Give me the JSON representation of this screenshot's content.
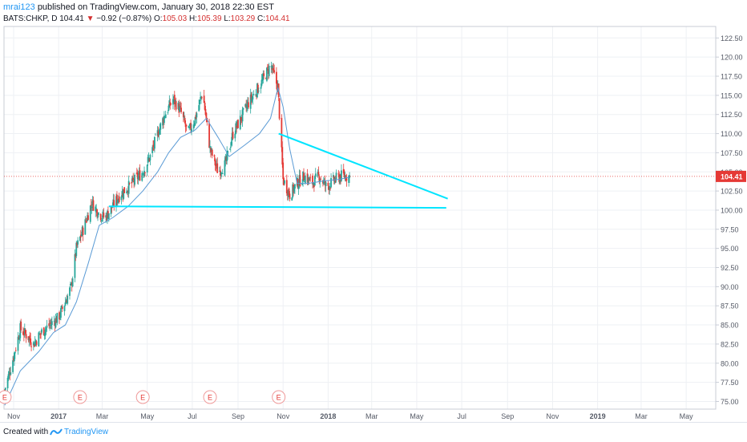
{
  "header": {
    "author": "mrai123",
    "published": "published on TradingView.com, January 30, 2018 22:30 EST",
    "symbol": "BATS:CHKP, D",
    "last": "104.41",
    "change": "−0.92 (−0.87%)",
    "o_label": "O:",
    "o_value": "105.03",
    "h_label": "H:",
    "h_value": "105.39",
    "l_label": "L:",
    "l_value": "103.29",
    "c_label": "C:",
    "c_value": "104.41"
  },
  "footer": {
    "created": "Created with",
    "brand": "TradingView"
  },
  "colors": {
    "up": "#26a69a",
    "down": "#e53935",
    "sma": "#5b9bd5",
    "trend": "#00e5ff",
    "price_line": "#e53935",
    "earnings": "#ef9a9a"
  },
  "chart_data": {
    "type": "candlestick",
    "symbol": "BATS:CHKP",
    "interval": "D",
    "ylim": [
      74.0,
      124.0
    ],
    "y_ticks": [
      75.0,
      77.5,
      80.0,
      82.5,
      85.0,
      87.5,
      90.0,
      92.5,
      95.0,
      97.5,
      100.0,
      102.5,
      105.0,
      107.5,
      110.0,
      112.5,
      115.0,
      117.5,
      120.0,
      122.5
    ],
    "y_tick_labels": [
      "75.00",
      "77.50",
      "80.00",
      "82.50",
      "85.00",
      "87.50",
      "90.00",
      "92.50",
      "95.00",
      "97.50",
      "100.00",
      "102.50",
      "105.00",
      "107.50",
      "110.00",
      "112.50",
      "115.00",
      "117.50",
      "120.00",
      "122.50"
    ],
    "x_range": [
      "2016-10-19",
      "2019-06-10"
    ],
    "x_ticks": [
      {
        "date": "2016-11-01",
        "label": "Nov",
        "bold": false
      },
      {
        "date": "2017-01-01",
        "label": "2017",
        "bold": true
      },
      {
        "date": "2017-03-01",
        "label": "Mar",
        "bold": false
      },
      {
        "date": "2017-05-01",
        "label": "May",
        "bold": false
      },
      {
        "date": "2017-07-01",
        "label": "Jul",
        "bold": false
      },
      {
        "date": "2017-09-01",
        "label": "Sep",
        "bold": false
      },
      {
        "date": "2017-11-01",
        "label": "Nov",
        "bold": false
      },
      {
        "date": "2018-01-01",
        "label": "2018",
        "bold": true
      },
      {
        "date": "2018-03-01",
        "label": "Mar",
        "bold": false
      },
      {
        "date": "2018-05-01",
        "label": "May",
        "bold": false
      },
      {
        "date": "2018-07-01",
        "label": "Jul",
        "bold": false
      },
      {
        "date": "2018-09-01",
        "label": "Sep",
        "bold": false
      },
      {
        "date": "2018-11-01",
        "label": "Nov",
        "bold": false
      },
      {
        "date": "2019-01-01",
        "label": "2019",
        "bold": true
      },
      {
        "date": "2019-03-01",
        "label": "Mar",
        "bold": false
      },
      {
        "date": "2019-05-01",
        "label": "May",
        "bold": false
      }
    ],
    "close_series": [
      [
        "2016-10-20",
        76.5
      ],
      [
        "2016-10-31",
        80.5
      ],
      [
        "2016-11-10",
        84.5
      ],
      [
        "2016-11-20",
        83.5
      ],
      [
        "2016-11-28",
        82.5
      ],
      [
        "2016-12-08",
        84.0
      ],
      [
        "2016-12-20",
        85.0
      ],
      [
        "2017-01-01",
        86.0
      ],
      [
        "2017-01-10",
        88.0
      ],
      [
        "2017-01-18",
        90.0
      ],
      [
        "2017-01-25",
        95.0
      ],
      [
        "2017-02-05",
        98.0
      ],
      [
        "2017-02-15",
        101.0
      ],
      [
        "2017-02-25",
        99.5
      ],
      [
        "2017-03-05",
        99.0
      ],
      [
        "2017-03-15",
        100.5
      ],
      [
        "2017-03-25",
        102.0
      ],
      [
        "2017-04-05",
        103.0
      ],
      [
        "2017-04-15",
        104.0
      ],
      [
        "2017-04-25",
        105.0
      ],
      [
        "2017-05-05",
        107.0
      ],
      [
        "2017-05-15",
        110.0
      ],
      [
        "2017-05-25",
        112.5
      ],
      [
        "2017-06-05",
        114.5
      ],
      [
        "2017-06-15",
        113.0
      ],
      [
        "2017-06-25",
        110.0
      ],
      [
        "2017-07-05",
        112.0
      ],
      [
        "2017-07-15",
        115.5
      ],
      [
        "2017-07-25",
        108.0
      ],
      [
        "2017-08-05",
        105.0
      ],
      [
        "2017-08-15",
        106.0
      ],
      [
        "2017-08-25",
        110.0
      ],
      [
        "2017-09-05",
        112.0
      ],
      [
        "2017-09-15",
        114.0
      ],
      [
        "2017-09-25",
        115.5
      ],
      [
        "2017-10-05",
        117.0
      ],
      [
        "2017-10-15",
        119.0
      ],
      [
        "2017-10-20",
        117.5
      ],
      [
        "2017-10-25",
        116.0
      ],
      [
        "2017-11-01",
        104.0
      ],
      [
        "2017-11-10",
        102.0
      ],
      [
        "2017-11-20",
        103.5
      ],
      [
        "2017-11-30",
        104.5
      ],
      [
        "2017-12-10",
        103.5
      ],
      [
        "2017-12-20",
        104.5
      ],
      [
        "2017-12-30",
        103.0
      ],
      [
        "2018-01-10",
        104.0
      ],
      [
        "2018-01-20",
        104.5
      ],
      [
        "2018-01-30",
        104.41
      ]
    ],
    "sma_series": [
      [
        "2016-10-20",
        74.5
      ],
      [
        "2016-11-10",
        79.0
      ],
      [
        "2016-12-05",
        81.5
      ],
      [
        "2016-12-25",
        84.0
      ],
      [
        "2017-01-10",
        85.0
      ],
      [
        "2017-01-25",
        88.0
      ],
      [
        "2017-02-10",
        93.0
      ],
      [
        "2017-02-25",
        98.0
      ],
      [
        "2017-03-15",
        99.0
      ],
      [
        "2017-04-05",
        100.5
      ],
      [
        "2017-04-25",
        102.5
      ],
      [
        "2017-05-15",
        105.0
      ],
      [
        "2017-05-30",
        107.5
      ],
      [
        "2017-06-15",
        109.5
      ],
      [
        "2017-07-05",
        110.5
      ],
      [
        "2017-07-20",
        112.0
      ],
      [
        "2017-08-05",
        109.5
      ],
      [
        "2017-08-20",
        107.0
      ],
      [
        "2017-09-10",
        108.5
      ],
      [
        "2017-09-30",
        110.0
      ],
      [
        "2017-10-15",
        112.0
      ],
      [
        "2017-10-25",
        116.0
      ],
      [
        "2017-11-01",
        113.5
      ],
      [
        "2017-11-10",
        108.0
      ],
      [
        "2017-11-20",
        103.5
      ],
      [
        "2017-12-05",
        103.5
      ],
      [
        "2017-12-25",
        103.8
      ],
      [
        "2018-01-15",
        104.0
      ],
      [
        "2018-01-30",
        104.3
      ]
    ],
    "last_price": 104.41,
    "last_price_label": "104.41",
    "trendlines": [
      {
        "name": "support",
        "from": [
          "2017-03-10",
          100.5
        ],
        "to": [
          "2018-06-10",
          100.3
        ]
      },
      {
        "name": "resistance",
        "from": [
          "2017-10-26",
          110.0
        ],
        "to": [
          "2018-06-12",
          101.5
        ]
      }
    ],
    "earnings": [
      {
        "date": "2016-10-20",
        "label": "E"
      },
      {
        "date": "2017-01-30",
        "label": "E"
      },
      {
        "date": "2017-04-25",
        "label": "E"
      },
      {
        "date": "2017-07-25",
        "label": "E"
      },
      {
        "date": "2017-10-26",
        "label": "E"
      }
    ],
    "grid": true
  }
}
